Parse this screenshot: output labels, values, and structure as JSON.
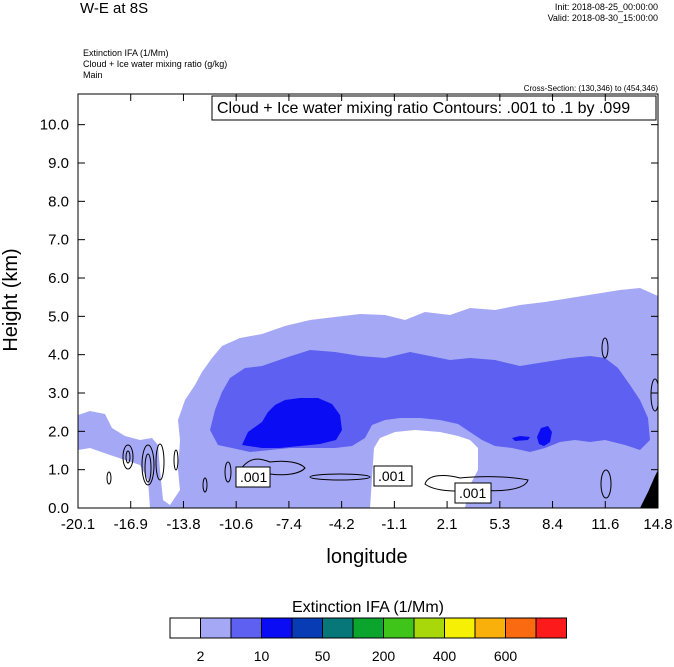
{
  "header": {
    "title": "W-E at 8S",
    "init": "Init: 2018-08-25_00:00:00",
    "valid": "Valid: 2018-08-30_15:00:00",
    "fields": [
      "Extinction IFA   (1/Mm)",
      "Cloud + Ice water mixing ratio   (g/kg)",
      "Main"
    ],
    "cross_section": "Cross-Section: (130,346) to (454,346)"
  },
  "chart_data": {
    "type": "heatmap",
    "title": "",
    "contour_info": "Cloud + Ice water mixing ratio Contours: .001 to .1 by .099",
    "xlabel": "longitude",
    "ylabel": "Height (km)",
    "xlim": [
      -20.1,
      14.8
    ],
    "ylim": [
      0,
      10.8
    ],
    "x_ticks": [
      "-20.1",
      "-16.9",
      "-13.8",
      "-10.6",
      "-7.4",
      "-4.2",
      "-1.1",
      "2.1",
      "5.3",
      "8.4",
      "11.6",
      "14.8"
    ],
    "y_ticks": [
      "0.0",
      "1.0",
      "2.0",
      "3.0",
      "4.0",
      "5.0",
      "6.0",
      "7.0",
      "8.0",
      "9.0",
      "10.0"
    ],
    "contour_labels": [
      ".001",
      ".001",
      ".001"
    ],
    "colorbar": {
      "title": "Extinction IFA  (1/Mm)",
      "colors": [
        "#ffffff",
        "#a5a8f5",
        "#5d60f0",
        "#0a0cf3",
        "#083cb5",
        "#08777a",
        "#0ba52e",
        "#3fc41a",
        "#a9d80a",
        "#f6f005",
        "#f9b00a",
        "#fa6a10",
        "#fd1a1a"
      ],
      "labels": [
        "2",
        "10",
        "50",
        "200",
        "400",
        "600"
      ]
    },
    "regions": [
      {
        "level": "2-10",
        "color": "#a5a8f5",
        "description": "thin cloud layer base 0 to 5.5 km across domain"
      },
      {
        "level": "10-50",
        "color": "#5d60f0",
        "description": "mid layer 1.5 to 4 km"
      },
      {
        "level": "50-200",
        "color": "#0a0cf3",
        "description": "core near -7.4 lon, 1.5 to 3 km"
      }
    ],
    "terrain_color": "#000000"
  }
}
